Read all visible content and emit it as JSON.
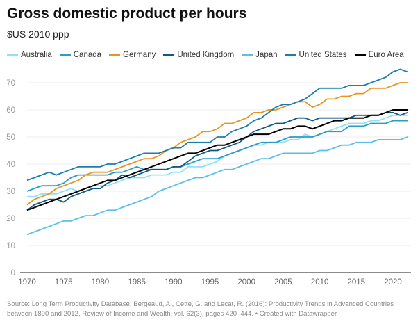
{
  "chart_data": {
    "type": "line",
    "title": "Gross domestic product per hours",
    "subtitle": "$US 2010 ppp",
    "x_start": 1970,
    "x_end": 2022,
    "ylim": [
      0,
      75
    ],
    "yticks": [
      0,
      10,
      20,
      30,
      40,
      50,
      60,
      70
    ],
    "xticks": [
      1970,
      1975,
      1980,
      1985,
      1990,
      1995,
      2000,
      2005,
      2010,
      2015,
      2020
    ],
    "grid": true,
    "legend": "top",
    "series": [
      {
        "name": "Australia",
        "color": "#8fe1f0",
        "values": [
          28,
          28,
          29,
          29,
          29,
          30,
          31,
          30,
          31,
          32,
          32,
          32,
          33,
          34,
          35,
          35,
          35,
          36,
          36,
          36,
          37,
          37,
          39,
          39,
          39,
          40,
          41,
          43,
          44,
          45,
          46,
          47,
          47,
          48,
          48,
          48,
          49,
          49,
          51,
          50,
          51,
          52,
          53,
          54,
          55,
          55,
          55,
          56,
          56,
          57,
          58,
          58,
          58
        ]
      },
      {
        "name": "Canada",
        "color": "#2a9cc8",
        "values": [
          30,
          31,
          32,
          32,
          32,
          33,
          35,
          36,
          36,
          36,
          36,
          36,
          37,
          37,
          38,
          39,
          38,
          38,
          38,
          38,
          39,
          39,
          40,
          41,
          42,
          42,
          42,
          43,
          44,
          45,
          46,
          47,
          48,
          48,
          48,
          49,
          50,
          50,
          50,
          50,
          51,
          52,
          52,
          52,
          54,
          54,
          54,
          55,
          55,
          55,
          56,
          56,
          56
        ]
      },
      {
        "name": "Germany",
        "color": "#e8951f",
        "values": [
          25,
          27,
          28,
          29,
          31,
          32,
          33,
          34,
          36,
          37,
          37,
          37,
          38,
          39,
          40,
          41,
          42,
          42,
          43,
          45,
          46,
          48,
          49,
          50,
          52,
          52,
          53,
          55,
          55,
          56,
          57,
          59,
          59,
          60,
          60,
          61,
          62,
          63,
          63,
          61,
          62,
          64,
          64,
          65,
          65,
          66,
          66,
          68,
          68,
          68,
          69,
          70,
          70
        ]
      },
      {
        "name": "United Kingdom",
        "color": "#0d5a83",
        "values": [
          23,
          25,
          26,
          27,
          27,
          26,
          28,
          29,
          30,
          31,
          31,
          33,
          34,
          36,
          35,
          36,
          37,
          38,
          38,
          38,
          39,
          39,
          41,
          43,
          44,
          45,
          45,
          46,
          47,
          48,
          50,
          52,
          53,
          54,
          55,
          55,
          56,
          57,
          57,
          56,
          57,
          57,
          57,
          57,
          57,
          58,
          58,
          58,
          58,
          59,
          59,
          58,
          59
        ]
      },
      {
        "name": "Japan",
        "color": "#5bbfea",
        "values": [
          14,
          15,
          16,
          17,
          18,
          19,
          19,
          20,
          21,
          21,
          22,
          23,
          23,
          24,
          25,
          26,
          27,
          28,
          30,
          31,
          32,
          33,
          34,
          35,
          35,
          36,
          37,
          38,
          38,
          39,
          40,
          41,
          42,
          42,
          43,
          44,
          44,
          44,
          44,
          44,
          45,
          45,
          46,
          47,
          47,
          48,
          48,
          48,
          49,
          49,
          49,
          49,
          50
        ]
      },
      {
        "name": "United States",
        "color": "#1b7ea9",
        "values": [
          34,
          35,
          36,
          37,
          36,
          37,
          38,
          39,
          39,
          39,
          39,
          40,
          40,
          41,
          42,
          43,
          44,
          44,
          44,
          45,
          46,
          46,
          48,
          48,
          48,
          48,
          50,
          50,
          52,
          53,
          54,
          56,
          57,
          59,
          61,
          62,
          62,
          63,
          64,
          66,
          68,
          68,
          68,
          68,
          69,
          69,
          69,
          70,
          71,
          72,
          74,
          75,
          74
        ]
      },
      {
        "name": "Euro Area",
        "color": "#000000",
        "values": [
          23,
          24,
          25,
          26,
          27,
          28,
          29,
          30,
          31,
          32,
          33,
          34,
          34,
          35,
          36,
          37,
          38,
          39,
          40,
          41,
          42,
          43,
          44,
          44,
          45,
          46,
          47,
          47,
          48,
          49,
          50,
          51,
          51,
          51,
          52,
          53,
          53,
          54,
          54,
          53,
          54,
          55,
          56,
          56,
          57,
          57,
          57,
          58,
          58,
          59,
          60,
          60,
          60
        ]
      }
    ]
  },
  "footer": "Source: Long Term Productivity Database; Bergeaud, A., Cette, G. and Lecat, R. (2016):  Productivity Trends in Advanced Countries between 1890 and 2012,  Review of Income and Wealth. vol. 62(3), pages 420–444. • Created with Datawrapper"
}
